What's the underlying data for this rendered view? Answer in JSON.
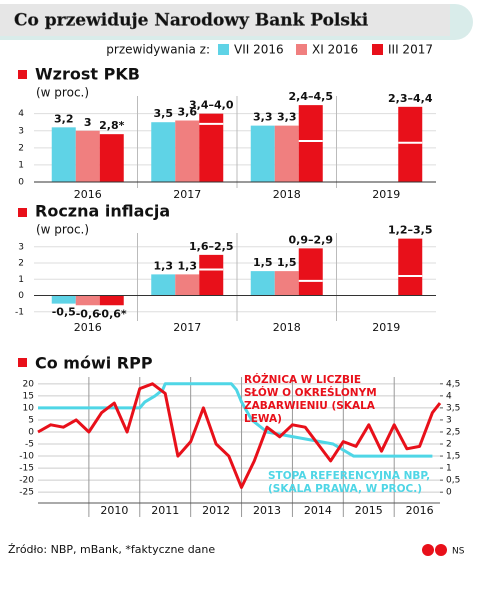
{
  "header": {
    "title": "Co przewiduje Narodowy Bank Polski"
  },
  "footer": {
    "source": "Źródło: NBP, mBank, *faktyczne dane",
    "author": "NS"
  },
  "chart_data": [
    {
      "type": "bar",
      "title": "Wzrost PKB",
      "subtitle": "(w proc.)",
      "legend_title": "przewidywania z:",
      "categories": [
        "2016",
        "2017",
        "2018",
        "2019"
      ],
      "ylim": [
        0,
        4.8
      ],
      "yticks": [
        0,
        1,
        2,
        3,
        4
      ],
      "series": [
        {
          "name": "VII 2016",
          "color": "#5fd3e6",
          "values": [
            3.2,
            3.5,
            3.3,
            null
          ],
          "value_labels": [
            "3,2",
            "3,5",
            "3,3",
            null
          ]
        },
        {
          "name": "XI 2016",
          "color": "#f07f7f",
          "values": [
            3,
            3.6,
            3.3,
            null
          ],
          "value_labels": [
            "3",
            "3,6",
            "3,3",
            null
          ]
        },
        {
          "name": "III 2017",
          "color": "#e8101a",
          "values": [
            2.8,
            4.0,
            4.5,
            4.4
          ],
          "lows": [
            null,
            3.4,
            2.4,
            2.3
          ],
          "value_labels": [
            "2,8*",
            "3,4–4,0",
            "2,4–4,5",
            "2,3–4,4"
          ]
        }
      ]
    },
    {
      "type": "bar",
      "title": "Roczna inflacja",
      "subtitle": "(w proc.)",
      "categories": [
        "2016",
        "2017",
        "2018",
        "2019"
      ],
      "ylim": [
        -1.2,
        3.6
      ],
      "yticks": [
        -1,
        0,
        1,
        2,
        3
      ],
      "series": [
        {
          "color": "#5fd3e6",
          "values": [
            -0.5,
            1.3,
            1.5,
            null
          ],
          "value_labels": [
            "-0,5",
            "1,3",
            "1,5",
            null
          ]
        },
        {
          "color": "#f07f7f",
          "values": [
            -0.6,
            1.3,
            1.5,
            null
          ],
          "value_labels": [
            "-0,6",
            "1,3",
            "1,5",
            null
          ]
        },
        {
          "color": "#e8101a",
          "values": [
            -0.6,
            2.5,
            2.9,
            3.5
          ],
          "lows": [
            null,
            1.6,
            0.9,
            1.2
          ],
          "value_labels": [
            "-0,6*",
            "1,6–2,5",
            "0,9–2,9",
            "1,2–3,5"
          ]
        }
      ]
    },
    {
      "type": "line",
      "title": "Co mówi RPP",
      "xlim": [
        2009,
        2016.9
      ],
      "xticks": [
        {
          "value": 2010.5,
          "label": "2010"
        },
        {
          "value": 2011.5,
          "label": "2011"
        },
        {
          "value": 2012.5,
          "label": "2012"
        },
        {
          "value": 2013.5,
          "label": "2013"
        },
        {
          "value": 2014.5,
          "label": "2014"
        },
        {
          "value": 2015.5,
          "label": "2015"
        },
        {
          "value": 2016.5,
          "label": "2016"
        }
      ],
      "ylim": [
        -27,
        22
      ],
      "yticks": [
        20,
        15,
        10,
        5,
        0,
        -5,
        -10,
        -15,
        -20,
        -25
      ],
      "y2lim": [
        -0.2,
        4.7
      ],
      "y2ticks": [
        {
          "value": 4.5,
          "label": "4,5"
        },
        4,
        {
          "value": 3.5,
          "label": "3,5"
        },
        3,
        {
          "value": 2.5,
          "label": "2,5"
        },
        2,
        {
          "value": 1.5,
          "label": "1,5"
        },
        1,
        {
          "value": 0.5,
          "label": "0,5"
        },
        0
      ],
      "series": [
        {
          "name": "RÓŻNICA W LICZBIE SŁÓW O OKREŚLONYM ZABARWIENIU (SKALA LEWA)",
          "color": "#e8101a",
          "axis": "y",
          "x": [
            2009,
            2009.25,
            2009.5,
            2009.75,
            2010,
            2010.25,
            2010.5,
            2010.75,
            2011,
            2011.25,
            2011.5,
            2011.75,
            2012,
            2012.25,
            2012.5,
            2012.75,
            2013,
            2013.25,
            2013.5,
            2013.75,
            2014,
            2014.25,
            2014.5,
            2014.75,
            2015,
            2015.25,
            2015.5,
            2015.75,
            2016,
            2016.25,
            2016.5,
            2016.75,
            2016.9
          ],
          "values": [
            0,
            3,
            2,
            5,
            0,
            8,
            12,
            0,
            18,
            20,
            16,
            -10,
            -4,
            10,
            -5,
            -10,
            -23,
            -12,
            2,
            -2,
            3,
            2,
            -5,
            -12,
            -4,
            -6,
            3,
            -8,
            3,
            -7,
            -6,
            8,
            12
          ]
        },
        {
          "name": "STOPA REFERENCYJNA NBP, (SKALA PRAWA, W PROC.)",
          "color": "#4fd6e6",
          "axis": "y2",
          "x": [
            2009,
            2011,
            2011.1,
            2011.3,
            2011.45,
            2011.5,
            2012.8,
            2012.9,
            2013,
            2013.2,
            2013.5,
            2014.8,
            2015.2,
            2016.75
          ],
          "values": [
            3.5,
            3.5,
            3.75,
            4,
            4.25,
            4.5,
            4.5,
            4.25,
            3.75,
            3,
            2.5,
            2,
            1.5,
            1.5
          ]
        }
      ]
    }
  ]
}
